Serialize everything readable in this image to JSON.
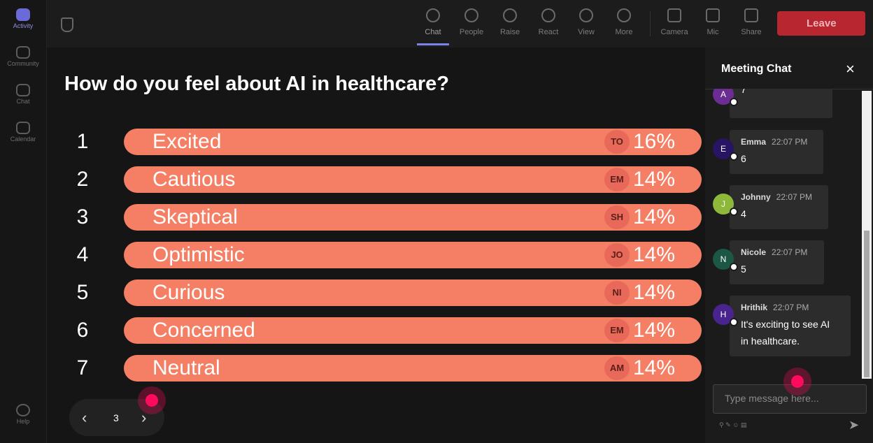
{
  "sidebar": {
    "items": [
      "Activity",
      "Community",
      "Chat",
      "Calendar"
    ],
    "help": "Help"
  },
  "toolbar": {
    "items": [
      "Chat",
      "People",
      "Raise",
      "React",
      "View",
      "More",
      "Camera",
      "Mic",
      "Share"
    ],
    "leave": "Leave"
  },
  "poll": {
    "title": "How do you feel about AI in healthcare?",
    "options": [
      {
        "number": "1",
        "label": "Excited",
        "initials": "TO",
        "percent": "16%"
      },
      {
        "number": "2",
        "label": "Cautious",
        "initials": "EM",
        "percent": "14%"
      },
      {
        "number": "3",
        "label": "Skeptical",
        "initials": "SH",
        "percent": "14%"
      },
      {
        "number": "4",
        "label": "Optimistic",
        "initials": "JO",
        "percent": "14%"
      },
      {
        "number": "5",
        "label": "Curious",
        "initials": "NI",
        "percent": "14%"
      },
      {
        "number": "6",
        "label": "Concerned",
        "initials": "EM",
        "percent": "14%"
      },
      {
        "number": "7",
        "label": "Neutral",
        "initials": "AM",
        "percent": "14%"
      }
    ],
    "page": "3"
  },
  "chat": {
    "title": "Meeting Chat",
    "messages": [
      {
        "avatar": "A",
        "text": "7"
      },
      {
        "avatar": "E",
        "name": "Emma",
        "time": "22:07 PM",
        "text": "6"
      },
      {
        "avatar": "J",
        "name": "Johnny",
        "time": "22:07 PM",
        "text": "4"
      },
      {
        "avatar": "N",
        "name": "Nicole",
        "time": "22:07 PM",
        "text": "5"
      },
      {
        "avatar": "H",
        "name": "Hrithik",
        "time": "22:07 PM",
        "text": "It's exciting to see AI in healthcare."
      }
    ],
    "placeholder": "Type message here..."
  }
}
